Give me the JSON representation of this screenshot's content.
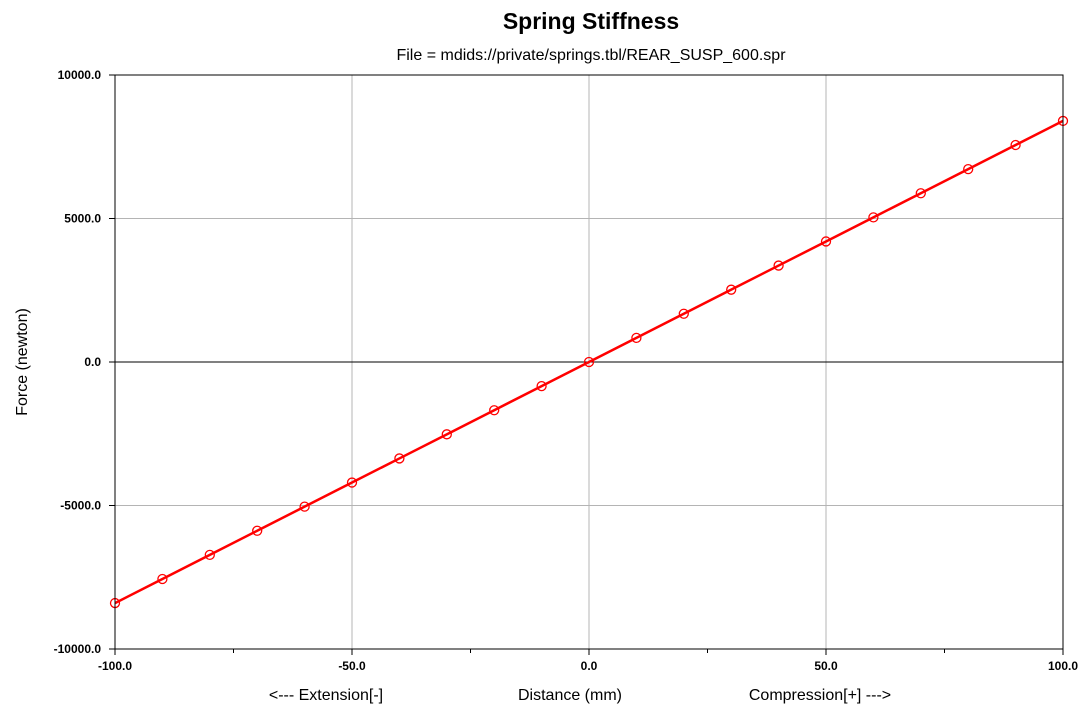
{
  "chart_data": {
    "type": "line",
    "title": "Spring Stiffness",
    "subtitle": "File = mdids://private/springs.tbl/REAR_SUSP_600.spr",
    "xlabel": "Distance (mm)",
    "xlabel_left": "<--- Extension[-]",
    "xlabel_right": "Compression[+] --->",
    "ylabel": "Force (newton)",
    "xlim": [
      -100.0,
      100.0
    ],
    "ylim": [
      -10000.0,
      10000.0
    ],
    "x_ticks": [
      -100.0,
      -50.0,
      0.0,
      50.0,
      100.0
    ],
    "x_tick_labels": [
      "-100.0",
      "-50.0",
      "0.0",
      "50.0",
      "100.0"
    ],
    "x_minor_ticks": [
      -75.0,
      -25.0,
      25.0,
      75.0
    ],
    "y_ticks": [
      -10000.0,
      -5000.0,
      0.0,
      5000.0,
      10000.0
    ],
    "y_tick_labels": [
      "-10000.0",
      "-5000.0",
      "0.0",
      "5000.0",
      "10000.0"
    ],
    "grid": true,
    "series": [
      {
        "color": "#ff0000",
        "marker": "circle",
        "x": [
          -100,
          -90,
          -80,
          -70,
          -60,
          -50,
          -40,
          -30,
          -20,
          -10,
          0,
          10,
          20,
          30,
          40,
          50,
          60,
          70,
          80,
          90,
          100
        ],
        "y": [
          -8400,
          -7560,
          -6720,
          -5880,
          -5040,
          -4200,
          -3360,
          -2520,
          -1680,
          -840,
          0,
          840,
          1680,
          2520,
          3360,
          4200,
          5040,
          5880,
          6720,
          7560,
          8400
        ]
      }
    ]
  }
}
